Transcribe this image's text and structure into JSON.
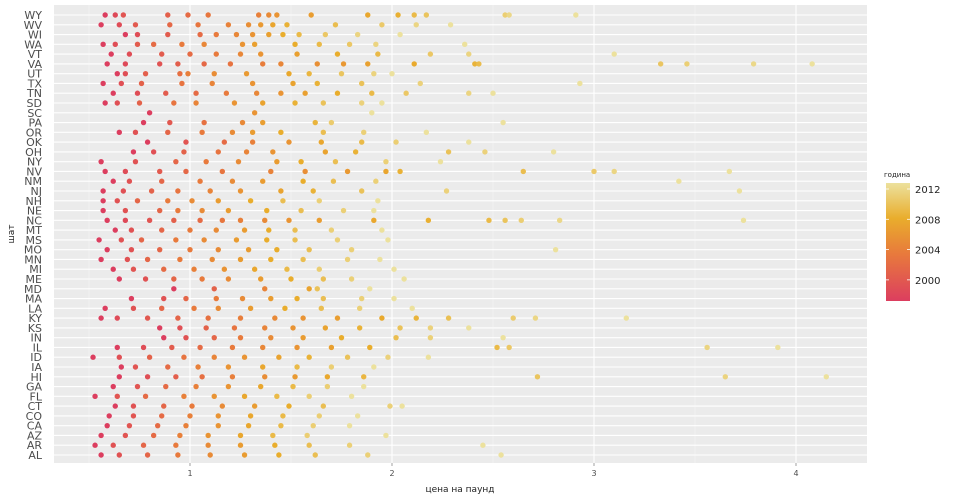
{
  "chart_data": {
    "type": "scatter",
    "xlabel": "цена на паунд",
    "ylabel": "шат",
    "xlim": [
      0.3,
      4.35
    ],
    "x_ticks": [
      1,
      2,
      3,
      4
    ],
    "grid": true,
    "categories": [
      "WY",
      "WV",
      "WI",
      "WA",
      "VT",
      "VA",
      "UT",
      "TX",
      "TN",
      "SD",
      "SC",
      "PA",
      "OR",
      "OK",
      "OH",
      "NY",
      "NV",
      "NM",
      "NJ",
      "NH",
      "NE",
      "NC",
      "MT",
      "MS",
      "MO",
      "MN",
      "MI",
      "ME",
      "MD",
      "MA",
      "LA",
      "KY",
      "KS",
      "IN",
      "IL",
      "ID",
      "IA",
      "HI",
      "GA",
      "FL",
      "CT",
      "CO",
      "CA",
      "AZ",
      "AR",
      "AL"
    ],
    "category_labels": [
      "WY",
      "WV",
      "WI",
      "WA",
      "VT",
      "VA",
      "UT",
      "TX",
      "TN",
      "SD",
      "SC",
      "PA",
      "OR",
      "OK",
      "OH",
      "NY",
      "NV",
      "NM",
      "NJ",
      "NH",
      "NE",
      "NC",
      "MT",
      "MS",
      "MO",
      "MN",
      "MI",
      "ME",
      "MD",
      "MA",
      "LA",
      "KY",
      "KS",
      "IN",
      "IL",
      "ID",
      "IA",
      "HI",
      "GA",
      "FL",
      "CT",
      "CO",
      "CA",
      "AZ",
      "AR",
      "AL"
    ],
    "color_scale": {
      "title": "година",
      "min": 1998,
      "max": 2012,
      "ticks": [
        2000,
        2004,
        2008,
        2012
      ],
      "colors": [
        "#dc3e5f",
        "#e87a3c",
        "#e9ad2c",
        "#ece19d"
      ]
    },
    "legend_position": "right",
    "year_range": [
      1998,
      2012
    ],
    "points": {
      "WY": [
        0.58,
        0.63,
        0.67,
        0.89,
        0.99,
        1.09,
        1.34,
        1.39,
        1.43,
        1.6,
        1.88,
        2.03,
        2.11,
        2.17,
        2.56,
        2.58,
        2.91
      ],
      "WV": [
        0.56,
        0.65,
        0.73,
        0.9,
        1.04,
        1.19,
        1.29,
        1.35,
        1.41,
        1.48,
        1.72,
        1.95,
        2.12,
        2.29
      ],
      "WI": [
        0.68,
        0.74,
        0.89,
        1.05,
        1.13,
        1.23,
        1.31,
        1.39,
        1.46,
        1.54,
        1.67,
        1.83,
        2.04
      ],
      "WA": [
        0.57,
        0.63,
        0.74,
        0.82,
        0.96,
        1.07,
        1.26,
        1.32,
        1.52,
        1.64,
        1.79,
        1.92,
        2.36
      ],
      "VT": [
        0.61,
        0.7,
        0.86,
        1.0,
        1.13,
        1.25,
        1.35,
        1.53,
        1.73,
        1.93,
        2.19,
        2.38,
        3.1
      ],
      "VA": [
        0.59,
        0.68,
        0.85,
        0.94,
        1.07,
        1.2,
        1.36,
        1.45,
        1.63,
        1.76,
        1.88,
        2.11,
        2.41,
        2.43,
        3.33,
        3.46,
        3.79,
        4.08
      ],
      "UT": [
        0.64,
        0.68,
        0.78,
        0.95,
        0.99,
        1.12,
        1.28,
        1.49,
        1.59,
        1.75,
        1.91,
        2.0
      ],
      "TX": [
        0.57,
        0.66,
        0.76,
        0.96,
        1.11,
        1.31,
        1.51,
        1.63,
        1.85,
        2.14,
        2.93
      ],
      "TN": [
        0.62,
        0.74,
        0.88,
        1.03,
        1.18,
        1.33,
        1.45,
        1.57,
        1.73,
        1.9,
        2.07,
        2.38,
        2.5
      ],
      "SD": [
        0.58,
        0.64,
        0.75,
        0.92,
        1.03,
        1.22,
        1.36,
        1.52,
        1.66,
        1.85,
        1.95
      ],
      "SC": [
        0.8,
        1.32,
        1.9
      ],
      "PA": [
        0.77,
        0.9,
        1.07,
        1.26,
        1.36,
        1.62,
        1.7,
        2.55
      ],
      "OR": [
        0.65,
        0.73,
        0.89,
        1.06,
        1.21,
        1.31,
        1.45,
        1.66,
        1.86,
        2.17
      ],
      "OK": [
        0.79,
        0.98,
        1.17,
        1.31,
        1.49,
        1.65,
        1.85,
        2.02,
        2.38
      ],
      "OH": [
        0.72,
        0.82,
        0.97,
        1.14,
        1.28,
        1.41,
        1.67,
        1.82,
        2.28,
        2.46,
        2.8
      ],
      "NY": [
        0.56,
        0.73,
        0.93,
        1.08,
        1.24,
        1.43,
        1.55,
        1.72,
        1.97,
        2.24
      ],
      "NV": [
        0.58,
        0.68,
        0.85,
        0.98,
        1.16,
        1.4,
        1.57,
        1.78,
        1.97,
        2.04,
        2.65,
        3.0,
        3.1,
        3.67
      ],
      "NM": [
        0.62,
        0.7,
        0.86,
        1.05,
        1.21,
        1.36,
        1.56,
        1.71,
        1.92,
        3.42
      ],
      "NJ": [
        0.57,
        0.67,
        0.81,
        0.94,
        1.1,
        1.25,
        1.45,
        1.61,
        1.85,
        2.27,
        3.72
      ],
      "NH": [
        0.57,
        0.64,
        0.74,
        0.89,
        1.01,
        1.14,
        1.3,
        1.46,
        1.64,
        1.93
      ],
      "NE": [
        0.57,
        0.68,
        0.85,
        0.94,
        1.06,
        1.19,
        1.38,
        1.55,
        1.76,
        1.91
      ],
      "NC": [
        0.59,
        0.68,
        0.8,
        0.92,
        1.05,
        1.16,
        1.25,
        1.37,
        1.49,
        1.64,
        1.91,
        2.18,
        2.48,
        2.56,
        2.64,
        2.83,
        3.74
      ],
      "MT": [
        0.63,
        0.71,
        0.86,
        1.0,
        1.13,
        1.27,
        1.39,
        1.52,
        1.7,
        1.95
      ],
      "MS": [
        0.55,
        0.66,
        0.76,
        0.93,
        1.07,
        1.23,
        1.38,
        1.52,
        1.73,
        1.98
      ],
      "MO": [
        0.59,
        0.71,
        0.85,
        1.0,
        1.14,
        1.29,
        1.43,
        1.59,
        1.8,
        2.81
      ],
      "MN": [
        0.56,
        0.69,
        0.79,
        0.95,
        1.11,
        1.25,
        1.4,
        1.56,
        1.78,
        1.94
      ],
      "MI": [
        0.62,
        0.72,
        0.87,
        1.02,
        1.17,
        1.32,
        1.48,
        1.64,
        2.01
      ],
      "ME": [
        0.65,
        0.78,
        0.92,
        1.06,
        1.19,
        1.35,
        1.5,
        1.66,
        1.8,
        2.06
      ],
      "MD": [
        0.92,
        1.12,
        1.37,
        1.59,
        1.63,
        1.89
      ],
      "MA": [
        0.71,
        0.87,
        0.98,
        1.13,
        1.26,
        1.4,
        1.53,
        1.66,
        1.85,
        2.01
      ],
      "LA": [
        0.58,
        0.72,
        0.86,
        1.02,
        1.14,
        1.3,
        1.47,
        1.65,
        1.84,
        2.1
      ],
      "KY": [
        0.56,
        0.64,
        0.79,
        0.94,
        1.09,
        1.25,
        1.42,
        1.56,
        1.73,
        1.95,
        2.12,
        2.28,
        2.6,
        2.71,
        3.16
      ],
      "KS": [
        0.85,
        0.95,
        1.08,
        1.22,
        1.37,
        1.51,
        1.67,
        1.84,
        2.04,
        2.19,
        2.38
      ],
      "IN": [
        0.87,
        0.98,
        1.12,
        1.25,
        1.4,
        1.56,
        1.75,
        2.02,
        2.19,
        2.55
      ],
      "IL": [
        0.64,
        0.77,
        0.91,
        1.05,
        1.21,
        1.36,
        1.53,
        1.7,
        1.89,
        2.52,
        2.58,
        3.56,
        3.91
      ],
      "ID": [
        0.52,
        0.65,
        0.8,
        0.97,
        1.12,
        1.27,
        1.44,
        1.59,
        1.78,
        1.98,
        2.18
      ],
      "IA": [
        0.66,
        0.73,
        0.89,
        1.04,
        1.19,
        1.36,
        1.53,
        1.7,
        1.91
      ],
      "HI": [
        0.65,
        0.79,
        0.93,
        1.06,
        1.21,
        1.37,
        1.52,
        1.68,
        1.86,
        2.72,
        3.65,
        4.15
      ],
      "GA": [
        0.62,
        0.74,
        0.88,
        1.03,
        1.19,
        1.35,
        1.51,
        1.68,
        1.86
      ],
      "FL": [
        0.53,
        0.64,
        0.78,
        0.97,
        1.12,
        1.27,
        1.43,
        1.59,
        1.8
      ],
      "CT": [
        0.63,
        0.72,
        0.87,
        1.01,
        1.16,
        1.32,
        1.49,
        1.66,
        1.99,
        2.05
      ],
      "CO": [
        0.6,
        0.72,
        0.86,
        1.0,
        1.14,
        1.3,
        1.46,
        1.64,
        1.83
      ],
      "CA": [
        0.59,
        0.7,
        0.84,
        0.98,
        1.14,
        1.29,
        1.45,
        1.61,
        1.79
      ],
      "AZ": [
        0.56,
        0.68,
        0.82,
        0.95,
        1.09,
        1.25,
        1.41,
        1.58,
        1.97
      ],
      "AR": [
        0.53,
        0.62,
        0.77,
        0.93,
        1.09,
        1.25,
        1.42,
        1.59,
        1.79,
        2.45
      ],
      "AL": [
        0.56,
        0.65,
        0.79,
        0.94,
        1.1,
        1.27,
        1.44,
        1.62,
        1.88,
        2.54
      ]
    }
  }
}
